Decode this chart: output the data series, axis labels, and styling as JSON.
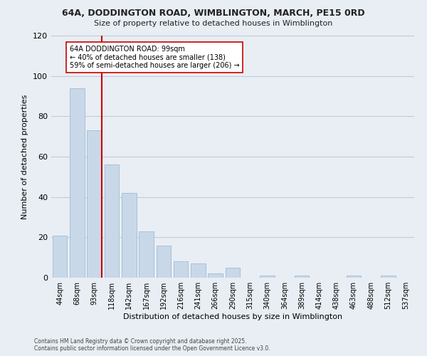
{
  "title": "64A, DODDINGTON ROAD, WIMBLINGTON, MARCH, PE15 0RD",
  "subtitle": "Size of property relative to detached houses in Wimblington",
  "xlabel": "Distribution of detached houses by size in Wimblington",
  "ylabel": "Number of detached properties",
  "bar_labels": [
    "44sqm",
    "68sqm",
    "93sqm",
    "118sqm",
    "142sqm",
    "167sqm",
    "192sqm",
    "216sqm",
    "241sqm",
    "266sqm",
    "290sqm",
    "315sqm",
    "340sqm",
    "364sqm",
    "389sqm",
    "414sqm",
    "438sqm",
    "463sqm",
    "488sqm",
    "512sqm",
    "537sqm"
  ],
  "bar_values": [
    21,
    94,
    73,
    56,
    42,
    23,
    16,
    8,
    7,
    2,
    5,
    0,
    1,
    0,
    1,
    0,
    0,
    1,
    0,
    1,
    0
  ],
  "bar_color": "#c8d8e8",
  "bar_edge_color": "#a8c0d8",
  "vline_color": "#cc0000",
  "ylim": [
    0,
    120
  ],
  "yticks": [
    0,
    20,
    40,
    60,
    80,
    100,
    120
  ],
  "annotation_text": "64A DODDINGTON ROAD: 99sqm\n← 40% of detached houses are smaller (138)\n59% of semi-detached houses are larger (206) →",
  "annotation_box_color": "#ffffff",
  "annotation_box_edge": "#cc0000",
  "footer1": "Contains HM Land Registry data © Crown copyright and database right 2025.",
  "footer2": "Contains public sector information licensed under the Open Government Licence v3.0.",
  "bg_color": "#e8eef4",
  "plot_bg_color": "#e8eef4",
  "grid_color": "#c0ccd8"
}
